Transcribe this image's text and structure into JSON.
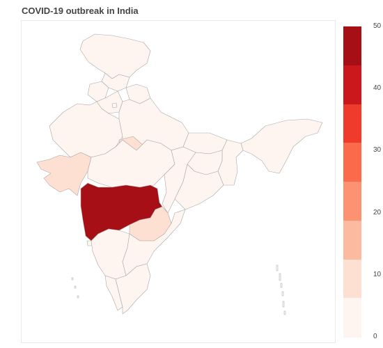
{
  "title": "COVID-19 outbreak in India",
  "colorscale": {
    "min": 0,
    "max": 50,
    "ticks": [
      "0",
      "10",
      "20",
      "30",
      "40",
      "50"
    ],
    "bands": [
      "#fff5f0",
      "#fee0d2",
      "#fcbba1",
      "#fc9272",
      "#fb6a4a",
      "#ef3b2c",
      "#cb181d",
      "#a50f15"
    ]
  },
  "regions": [
    {
      "name": "ladakh-jk",
      "level": 1
    },
    {
      "name": "himachal",
      "level": 1
    },
    {
      "name": "punjab",
      "level": 1
    },
    {
      "name": "uttarakhand",
      "level": 1
    },
    {
      "name": "haryana",
      "level": 2
    },
    {
      "name": "rajasthan",
      "level": 1
    },
    {
      "name": "uttar-pradesh",
      "level": 1
    },
    {
      "name": "gujarat",
      "level": 7
    },
    {
      "name": "madhya-pradesh",
      "level": 1
    },
    {
      "name": "bihar",
      "level": 1
    },
    {
      "name": "northeast",
      "level": 1
    },
    {
      "name": "west-bengal",
      "level": 0
    },
    {
      "name": "jharkhand",
      "level": 0
    },
    {
      "name": "odisha",
      "level": 0
    },
    {
      "name": "chhattisgarh",
      "level": 0
    },
    {
      "name": "maharashtra",
      "level": 50
    },
    {
      "name": "telangana",
      "level": 7
    },
    {
      "name": "andhra-pradesh",
      "level": 1
    },
    {
      "name": "karnataka",
      "level": 1
    },
    {
      "name": "goa",
      "level": 0
    },
    {
      "name": "kerala",
      "level": 2
    },
    {
      "name": "tamil-nadu",
      "level": 1
    },
    {
      "name": "delhi",
      "level": 2
    },
    {
      "name": "central-strip",
      "level": 7
    }
  ]
}
